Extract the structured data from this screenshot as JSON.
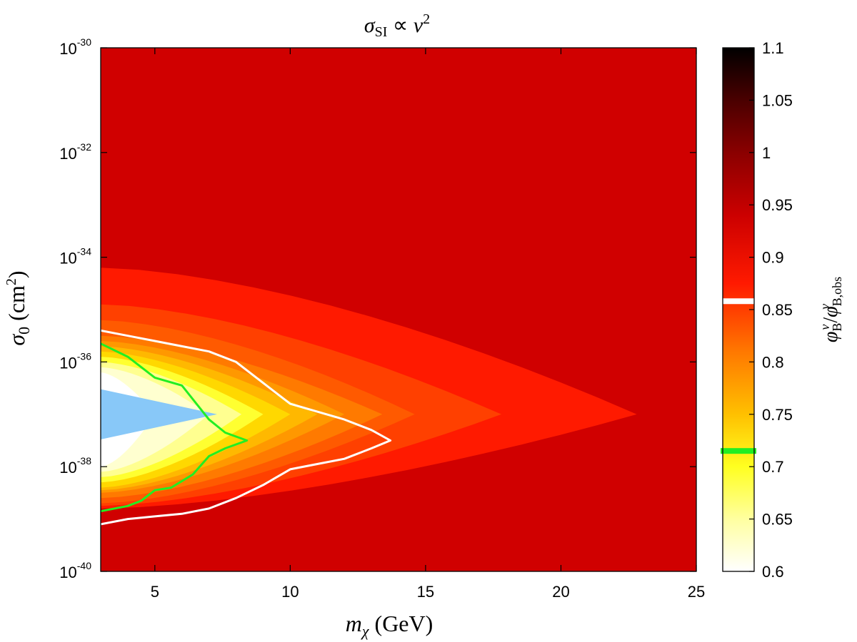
{
  "chart_data": {
    "type": "filled-contour",
    "title": {
      "main": "σ",
      "sub": "SI",
      "rest": " ∝ ",
      "var": "v",
      "exp": "2"
    },
    "xlabel": {
      "var": "m",
      "sub": "χ",
      "unit": " (GeV)"
    },
    "ylabel": {
      "var": "σ",
      "sub": "0",
      "unit_open": " (cm",
      "unit_exp": "2",
      "unit_close": ")"
    },
    "x_range": [
      3,
      25
    ],
    "y_range": [
      1e-40,
      1e-30
    ],
    "y_scale": "log",
    "x_ticks": [
      {
        "value": 5,
        "label": "5"
      },
      {
        "value": 10,
        "label": "10"
      },
      {
        "value": 15,
        "label": "15"
      },
      {
        "value": 20,
        "label": "20"
      },
      {
        "value": 25,
        "label": "25"
      }
    ],
    "y_ticks": [
      {
        "exp": -30,
        "base": "10",
        "sup": "-30"
      },
      {
        "exp": -32,
        "base": "10",
        "sup": "-32"
      },
      {
        "exp": -34,
        "base": "10",
        "sup": "-34"
      },
      {
        "exp": -36,
        "base": "10",
        "sup": "-36"
      },
      {
        "exp": -38,
        "base": "10",
        "sup": "-38"
      },
      {
        "exp": -40,
        "base": "10",
        "sup": "-40"
      }
    ],
    "colorbar": {
      "range": [
        0.6,
        1.1
      ],
      "label": {
        "num": "φ",
        "num_sub": "B",
        "num_sup": "ν",
        "den": "φ",
        "den_sub": "B,obs",
        "den_sup": "ν"
      },
      "ticks": [
        {
          "value": 0.6,
          "label": "0.6"
        },
        {
          "value": 0.65,
          "label": "0.65"
        },
        {
          "value": 0.7,
          "label": "0.7"
        },
        {
          "value": 0.75,
          "label": "0.75"
        },
        {
          "value": 0.8,
          "label": "0.8"
        },
        {
          "value": 0.85,
          "label": "0.85"
        },
        {
          "value": 0.9,
          "label": "0.9"
        },
        {
          "value": 0.95,
          "label": "0.95"
        },
        {
          "value": 1,
          "label": "1"
        },
        {
          "value": 1.05,
          "label": "1.05"
        },
        {
          "value": 1.1,
          "label": "1.1"
        }
      ],
      "markers": [
        {
          "value": 0.858,
          "color": "#ffffff"
        },
        {
          "value": 0.715,
          "color": "#22ee22"
        }
      ]
    },
    "background_level": 0.95,
    "center_log_sigma": -37.0,
    "contour_regions": [
      {
        "level": 0.93,
        "color": "#ff1a00",
        "tip_x": 22.8,
        "left_up": -34.2,
        "left_down": -38.8
      },
      {
        "level": 0.9,
        "color": "#ff4000",
        "tip_x": 17.8,
        "left_up": -34.9,
        "left_down": -38.75
      },
      {
        "level": 0.87,
        "color": "#ff5a00",
        "tip_x": 14.6,
        "left_up": -35.2,
        "left_down": -38.7
      },
      {
        "level": 0.84,
        "color": "#ff7a00",
        "tip_x": 13.4,
        "left_up": -35.5,
        "left_down": -38.6
      },
      {
        "level": 0.81,
        "color": "#ff9800",
        "tip_x": 12.0,
        "left_up": -35.6,
        "left_down": -38.5
      },
      {
        "level": 0.78,
        "color": "#ffb800",
        "tip_x": 11.0,
        "left_up": -35.7,
        "left_down": -38.45
      },
      {
        "level": 0.75,
        "color": "#ffd800",
        "tip_x": 10.0,
        "left_up": -35.8,
        "left_down": -38.4
      },
      {
        "level": 0.72,
        "color": "#ffff30",
        "tip_x": 9.0,
        "left_up": -35.9,
        "left_down": -38.3
      },
      {
        "level": 0.68,
        "color": "#ffff90",
        "tip_x": 8.2,
        "left_up": -36.0,
        "left_down": -38.2
      },
      {
        "level": 0.64,
        "color": "#ffffd0",
        "tip_x": 7.0,
        "left_up": -36.1,
        "left_down": -38.1
      },
      {
        "level": 0.6,
        "color": "#ffffff",
        "tip_x": 5.0,
        "left_up": -36.2,
        "left_down": -38.0
      }
    ],
    "excluded_region": {
      "color": "#88c8f8",
      "points": [
        [
          3,
          -36.52
        ],
        [
          7.3,
          -37.0
        ],
        [
          3,
          -37.48
        ]
      ]
    },
    "contour_lines": [
      {
        "level": 0.858,
        "color": "#ffffff",
        "points": [
          [
            3,
            -35.4
          ],
          [
            4,
            -35.5
          ],
          [
            5,
            -35.6
          ],
          [
            6,
            -35.7
          ],
          [
            7,
            -35.8
          ],
          [
            8,
            -36.0
          ],
          [
            9,
            -36.4
          ],
          [
            10,
            -36.8
          ],
          [
            11,
            -36.95
          ],
          [
            12,
            -37.1
          ],
          [
            13,
            -37.3
          ],
          [
            13.7,
            -37.5
          ],
          [
            13,
            -37.65
          ],
          [
            12,
            -37.85
          ],
          [
            11,
            -37.95
          ],
          [
            10,
            -38.05
          ],
          [
            9,
            -38.35
          ],
          [
            8,
            -38.6
          ],
          [
            7,
            -38.8
          ],
          [
            6,
            -38.9
          ],
          [
            5,
            -38.95
          ],
          [
            4,
            -39.0
          ],
          [
            3,
            -39.1
          ]
        ]
      },
      {
        "level": 0.715,
        "color": "#22ee22",
        "points": [
          [
            3,
            -35.65
          ],
          [
            4,
            -35.9
          ],
          [
            5,
            -36.3
          ],
          [
            6,
            -36.45
          ],
          [
            7,
            -37.1
          ],
          [
            7.6,
            -37.35
          ],
          [
            8.4,
            -37.5
          ],
          [
            7.6,
            -37.65
          ],
          [
            7,
            -37.8
          ],
          [
            6.4,
            -38.15
          ],
          [
            5.6,
            -38.4
          ],
          [
            5,
            -38.45
          ],
          [
            4.5,
            -38.65
          ],
          [
            4,
            -38.75
          ],
          [
            3,
            -38.85
          ]
        ]
      }
    ]
  }
}
